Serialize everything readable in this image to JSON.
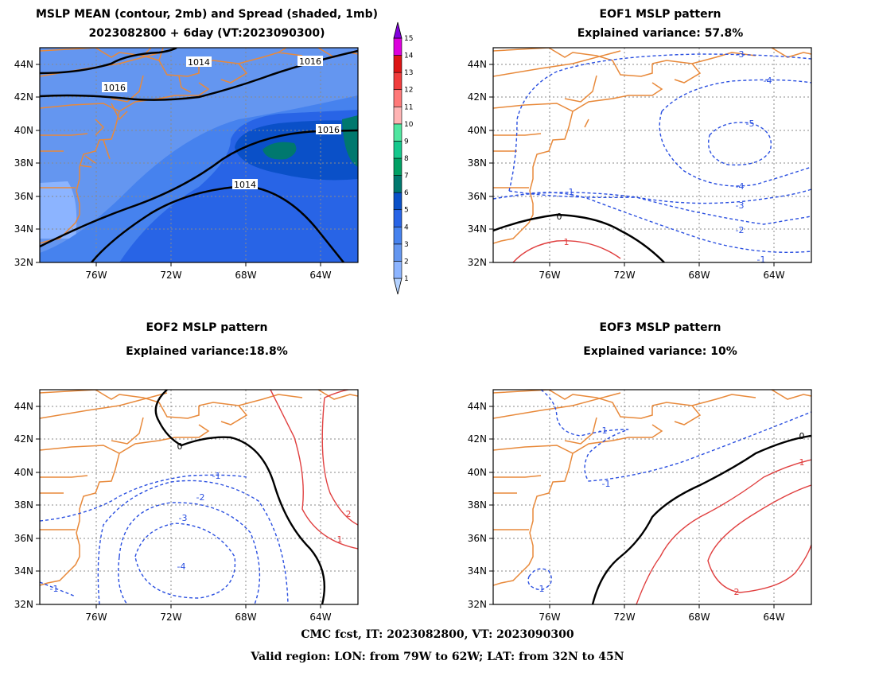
{
  "panels": [
    {
      "title_line1": "MSLP MEAN (contour, 2mb) and Spread (shaded, 1mb)",
      "title_line2": "2023082800 + 6day (VT:2023090300)"
    },
    {
      "title_line1": "EOF1 MSLP pattern",
      "title_line2": "Explained variance: 57.8%"
    },
    {
      "title_line1": "EOF2 MSLP pattern",
      "title_line2": "Explained variance:18.8%"
    },
    {
      "title_line1": "EOF3 MSLP pattern",
      "title_line2": "Explained variance: 10%"
    }
  ],
  "axes": {
    "x_ticks": [
      "76W",
      "72W",
      "68W",
      "64W"
    ],
    "y_ticks": [
      "44N",
      "42N",
      "40N",
      "38N",
      "36N",
      "34N",
      "32N"
    ]
  },
  "colorbar": {
    "labels": [
      "1",
      "2",
      "3",
      "4",
      "5",
      "6",
      "7",
      "8",
      "9",
      "10",
      "11",
      "12",
      "13",
      "14",
      "15"
    ],
    "colors": [
      "#b4d2ff",
      "#8cb4ff",
      "#6496f0",
      "#4682ee",
      "#2864e6",
      "#0a50c8",
      "#00786e",
      "#00a064",
      "#14c88c",
      "#50e6a0",
      "#ffb4b4",
      "#ff7878",
      "#f03c3c",
      "#dc1414",
      "#dc00dc",
      "#8200dc"
    ]
  },
  "chart_data": [
    {
      "type": "contour",
      "title": "MSLP MEAN (contour, 2mb) and Spread (shaded, 1mb)",
      "subtitle": "2023082800 + 6day (VT:2023090300)",
      "xlim": [
        "79W",
        "62W"
      ],
      "ylim": [
        "32N",
        "45N"
      ],
      "contour_labels": [
        "1014",
        "1016",
        "1016",
        "1016",
        "1014"
      ],
      "shaded_levels": [
        1,
        2,
        3,
        4,
        5,
        6,
        7,
        8,
        9,
        10,
        11,
        12,
        13,
        14,
        15
      ]
    },
    {
      "type": "contour",
      "title": "EOF1 MSLP pattern",
      "subtitle": "Explained variance: 57.8%",
      "contour_labels": [
        "-5",
        "-4",
        "-3",
        "-4",
        "-3",
        "-2",
        "-1",
        "-1",
        "0",
        "1"
      ]
    },
    {
      "type": "contour",
      "title": "EOF2 MSLP pattern",
      "subtitle": "Explained variance:18.8%",
      "contour_labels": [
        "0",
        "-1",
        "-2",
        "-3",
        "-4",
        "-1",
        "1",
        "2"
      ]
    },
    {
      "type": "contour",
      "title": "EOF3 MSLP pattern",
      "subtitle": "Explained variance: 10%",
      "contour_labels": [
        "-1",
        "-1",
        "-1",
        "0",
        "1",
        "2"
      ]
    }
  ],
  "footer": {
    "line1": "CMC fcst, IT: 2023082800, VT: 2023090300",
    "line2": "Valid region: LON: from 79W to 62W; LAT: from 32N to 45N"
  }
}
